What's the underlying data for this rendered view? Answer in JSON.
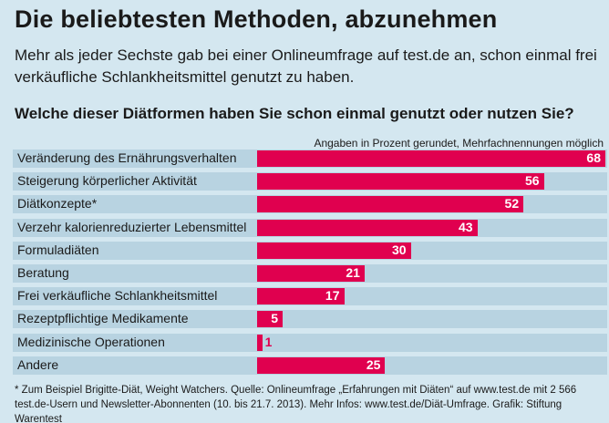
{
  "chart_data": {
    "type": "bar",
    "orientation": "horizontal",
    "title": "Die beliebtesten Methoden, abzunehmen",
    "subtitle": "Mehr als jeder Sechste gab bei einer Onlineumfrage auf test.de an, schon einmal frei verkäufliche Schlankheitsmittel genutzt zu haben.",
    "question": "Welche dieser Diätformen haben Sie schon einmal genutzt oder nutzen Sie?",
    "note": "Angaben in Prozent gerundet, Mehrfachnennungen möglich",
    "categories": [
      "Veränderung des Ernährungsverhalten",
      "Steigerung körperlicher Aktivität",
      "Diätkonzepte*",
      "Verzehr kalorienreduzierter Lebensmittel",
      "Formuladiäten",
      "Beratung",
      "Frei verkäufliche Schlankheitsmittel",
      "Rezeptpflichtige Medikamente",
      "Medizinische Operationen",
      "Andere"
    ],
    "values": [
      68,
      56,
      52,
      43,
      30,
      21,
      17,
      5,
      1,
      25
    ],
    "xlim": [
      0,
      68
    ],
    "bar_color": "#e0004f",
    "footer": "* Zum Beispiel Brigitte-Diät, Weight Watchers.    Quelle: Onlineumfrage „Erfahrungen mit Diäten“ auf www.test.de mit 2 566 test.de-Usern und Newsletter-Abonnenten (10. bis 21.7. 2013). Mehr Infos: www.test.de/Diät-Umfrage. Grafik: Stiftung Warentest"
  }
}
